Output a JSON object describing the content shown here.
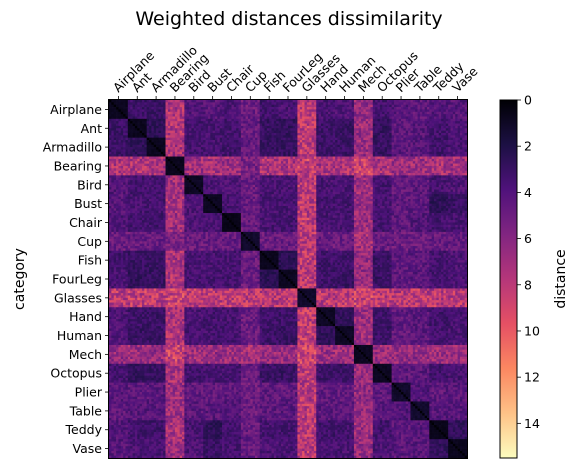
{
  "chart_data": {
    "type": "heatmap",
    "title": "Weighted distances dissimilarity",
    "ylabel": "category",
    "xlabel": "",
    "categories": [
      "Airplane",
      "Ant",
      "Armadillo",
      "Bearing",
      "Bird",
      "Bust",
      "Chair",
      "Cup",
      "Fish",
      "FourLeg",
      "Glasses",
      "Hand",
      "Human",
      "Mech",
      "Octopus",
      "Plier",
      "Table",
      "Teddy",
      "Vase"
    ],
    "colorbar": {
      "label": "distance",
      "min": 0,
      "max": 15.5,
      "ticks": [
        0,
        2,
        4,
        6,
        8,
        10,
        12,
        14
      ],
      "reversed": true,
      "colormap": "magma",
      "stops": [
        "#000004",
        "#1c1044",
        "#4f127b",
        "#812581",
        "#b5367a",
        "#e55064",
        "#fb8761",
        "#fec287",
        "#fcfdbf"
      ]
    },
    "category_distances": [
      [
        0.8,
        3.2,
        3.0,
        7.5,
        4.0,
        4.2,
        3.8,
        5.0,
        3.3,
        3.6,
        8.0,
        3.8,
        4.0,
        6.5,
        3.5,
        4.2,
        4.5,
        4.0,
        4.2
      ],
      [
        3.2,
        0.8,
        2.6,
        7.6,
        3.5,
        3.6,
        3.4,
        4.8,
        3.0,
        2.8,
        8.2,
        3.2,
        3.0,
        6.8,
        2.9,
        4.4,
        4.2,
        3.4,
        3.8
      ],
      [
        3.0,
        2.6,
        0.8,
        7.4,
        3.5,
        3.5,
        3.3,
        4.7,
        2.9,
        2.9,
        8.0,
        3.1,
        3.1,
        6.6,
        3.0,
        4.3,
        4.2,
        3.3,
        3.7
      ],
      [
        7.5,
        7.6,
        7.4,
        0.8,
        7.0,
        7.3,
        6.9,
        5.5,
        7.4,
        7.5,
        8.5,
        7.4,
        7.5,
        8.6,
        7.3,
        6.8,
        7.0,
        7.3,
        7.0
      ],
      [
        4.0,
        3.5,
        3.5,
        7.0,
        1.0,
        3.8,
        3.9,
        4.9,
        3.6,
        3.6,
        8.1,
        3.7,
        3.6,
        6.9,
        3.4,
        4.6,
        4.4,
        3.6,
        3.9
      ],
      [
        4.2,
        3.6,
        3.5,
        7.3,
        3.8,
        0.9,
        3.6,
        4.8,
        3.7,
        3.6,
        8.0,
        3.5,
        3.5,
        6.7,
        3.6,
        4.5,
        4.3,
        2.6,
        3.1
      ],
      [
        3.8,
        3.4,
        3.3,
        6.9,
        3.9,
        3.6,
        0.6,
        4.7,
        3.6,
        3.5,
        8.1,
        3.6,
        3.5,
        6.8,
        3.5,
        4.4,
        4.0,
        3.4,
        3.6
      ],
      [
        5.0,
        4.8,
        4.7,
        5.5,
        4.9,
        4.8,
        4.7,
        1.2,
        4.9,
        4.9,
        8.0,
        4.9,
        4.9,
        7.2,
        4.8,
        5.0,
        4.9,
        4.8,
        4.7
      ],
      [
        3.3,
        3.0,
        2.9,
        7.4,
        3.6,
        3.7,
        3.6,
        4.9,
        0.8,
        2.5,
        8.0,
        3.3,
        3.2,
        6.6,
        3.1,
        4.5,
        4.4,
        3.5,
        3.8
      ],
      [
        3.6,
        2.8,
        2.9,
        7.5,
        3.6,
        3.6,
        3.5,
        4.9,
        2.5,
        0.9,
        8.1,
        3.2,
        3.0,
        6.7,
        3.0,
        4.5,
        4.3,
        3.4,
        3.7
      ],
      [
        8.0,
        8.2,
        8.0,
        8.5,
        8.1,
        8.0,
        8.1,
        8.0,
        8.0,
        8.1,
        1.2,
        8.1,
        8.1,
        8.7,
        8.0,
        7.9,
        8.0,
        8.0,
        8.0
      ],
      [
        3.8,
        3.2,
        3.1,
        7.4,
        3.7,
        3.5,
        3.6,
        4.9,
        3.3,
        3.2,
        8.1,
        1.0,
        2.7,
        6.8,
        3.2,
        4.5,
        4.3,
        3.3,
        3.6
      ],
      [
        4.0,
        3.0,
        3.1,
        7.5,
        3.6,
        3.5,
        3.5,
        4.9,
        3.2,
        3.0,
        8.1,
        2.7,
        1.0,
        6.9,
        3.1,
        4.6,
        4.4,
        3.4,
        3.7
      ],
      [
        6.5,
        6.8,
        6.6,
        8.6,
        6.9,
        6.7,
        6.8,
        7.2,
        6.6,
        6.7,
        8.7,
        6.8,
        6.9,
        0.9,
        6.7,
        6.5,
        6.6,
        6.8,
        6.7
      ],
      [
        3.5,
        2.9,
        3.0,
        7.3,
        3.4,
        3.6,
        3.5,
        4.8,
        3.1,
        3.0,
        8.0,
        3.2,
        3.1,
        6.7,
        0.9,
        4.4,
        4.3,
        3.4,
        3.7
      ],
      [
        4.2,
        4.4,
        4.3,
        6.8,
        4.6,
        4.5,
        4.4,
        5.0,
        4.5,
        4.5,
        7.9,
        4.5,
        4.6,
        6.5,
        4.4,
        1.2,
        4.0,
        4.4,
        4.3
      ],
      [
        4.5,
        4.2,
        4.2,
        7.0,
        4.4,
        4.3,
        4.0,
        4.9,
        4.4,
        4.3,
        8.0,
        4.3,
        4.4,
        6.6,
        4.3,
        4.0,
        1.3,
        4.2,
        4.2
      ],
      [
        4.0,
        3.4,
        3.3,
        7.3,
        3.6,
        2.6,
        3.4,
        4.8,
        3.5,
        3.4,
        8.0,
        3.3,
        3.4,
        6.8,
        3.4,
        4.4,
        4.2,
        0.7,
        2.8
      ],
      [
        4.2,
        3.8,
        3.7,
        7.0,
        3.9,
        3.1,
        3.6,
        4.7,
        3.8,
        3.7,
        8.0,
        3.6,
        3.7,
        6.7,
        3.7,
        4.3,
        4.2,
        2.8,
        0.8
      ]
    ]
  }
}
